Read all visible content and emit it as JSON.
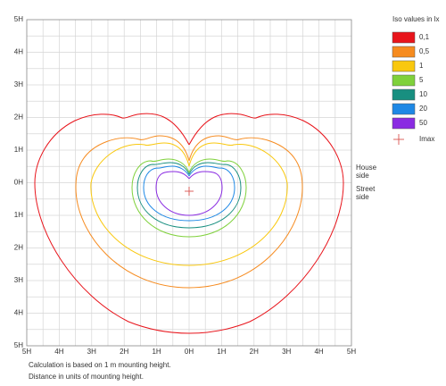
{
  "x_axis": {
    "labels": [
      "5H",
      "4H",
      "3H",
      "2H",
      "1H",
      "0H",
      "1H",
      "2H",
      "3H",
      "4H",
      "5H"
    ]
  },
  "y_axis": {
    "labels": [
      "5H",
      "4H",
      "3H",
      "2H",
      "1H",
      "0H",
      "1H",
      "2H",
      "3H",
      "4H",
      "5H"
    ]
  },
  "sides": {
    "house": [
      "House",
      "side"
    ],
    "street": [
      "Street",
      "side"
    ]
  },
  "legend": {
    "title": "Iso values in lx",
    "items": [
      {
        "label": "0,1",
        "color": "#e8141b"
      },
      {
        "label": "0,5",
        "color": "#f68b1f"
      },
      {
        "label": "1",
        "color": "#f9c80e"
      },
      {
        "label": "5",
        "color": "#7fd13b"
      },
      {
        "label": "10",
        "color": "#188f80"
      },
      {
        "label": "20",
        "color": "#1e88e5"
      },
      {
        "label": "50",
        "color": "#8a2be2"
      }
    ],
    "imax": {
      "label": "Imax",
      "color": "#d9534f"
    }
  },
  "notes": [
    "Calculation is based on 1 m mounting height.",
    "Distance in units of mounting height."
  ]
}
